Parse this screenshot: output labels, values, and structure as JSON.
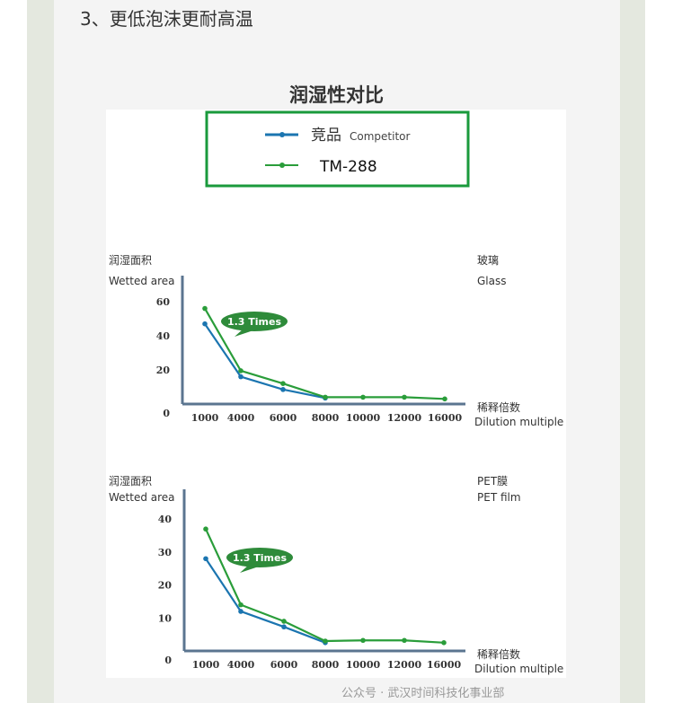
{
  "heading": "3、更低泡沫更耐高温",
  "title": "润湿性对比",
  "legend": {
    "competitor_cn": "竞品",
    "competitor_en": "Competitor",
    "tm": "TM-288"
  },
  "colors": {
    "competitor": "#1b75b0",
    "tm288": "#2a9d3a",
    "legend_border": "#1a9a3c",
    "bubble": "#2e8b3a"
  },
  "watermark": "公众号 · 武汉时间科技化事业部",
  "chart_data": [
    {
      "type": "line",
      "substrate_cn": "玻璃",
      "substrate_en": "Glass",
      "ylabel_cn": "润湿面积",
      "ylabel_en": "Wetted area",
      "xlabel_cn": "稀释倍数",
      "xlabel_en": "Dilution multiple",
      "categories": [
        "1000",
        "4000",
        "6000",
        "8000",
        "10000",
        "12000",
        "16000"
      ],
      "yticks": [
        "0",
        "20",
        "40",
        "60"
      ],
      "annotation": "1.3 Times",
      "series": [
        {
          "name": "竞品 Competitor",
          "color": "#1b75b0",
          "values": [
            47,
            16,
            8.5,
            3.5,
            null,
            null,
            null
          ]
        },
        {
          "name": "TM-288",
          "color": "#2a9d3a",
          "values": [
            56,
            19.5,
            12,
            4,
            4,
            4,
            3
          ]
        }
      ]
    },
    {
      "type": "line",
      "substrate_cn": "PET膜",
      "substrate_en": "PET film",
      "ylabel_cn": "润湿面积",
      "ylabel_en": "Wetted area",
      "xlabel_cn": "稀释倍数",
      "xlabel_en": "Dilution multiple",
      "categories": [
        "1000",
        "4000",
        "6000",
        "8000",
        "10000",
        "12000",
        "16000"
      ],
      "yticks": [
        "0",
        "10",
        "20",
        "30",
        "40"
      ],
      "annotation": "1.3 Times",
      "series": [
        {
          "name": "竞品 Competitor",
          "color": "#1b75b0",
          "values": [
            28,
            12,
            7.3,
            2.5,
            null,
            null,
            null
          ]
        },
        {
          "name": "TM-288",
          "color": "#2a9d3a",
          "values": [
            37,
            14,
            9,
            3,
            3.2,
            3.2,
            2.5
          ]
        }
      ]
    }
  ]
}
